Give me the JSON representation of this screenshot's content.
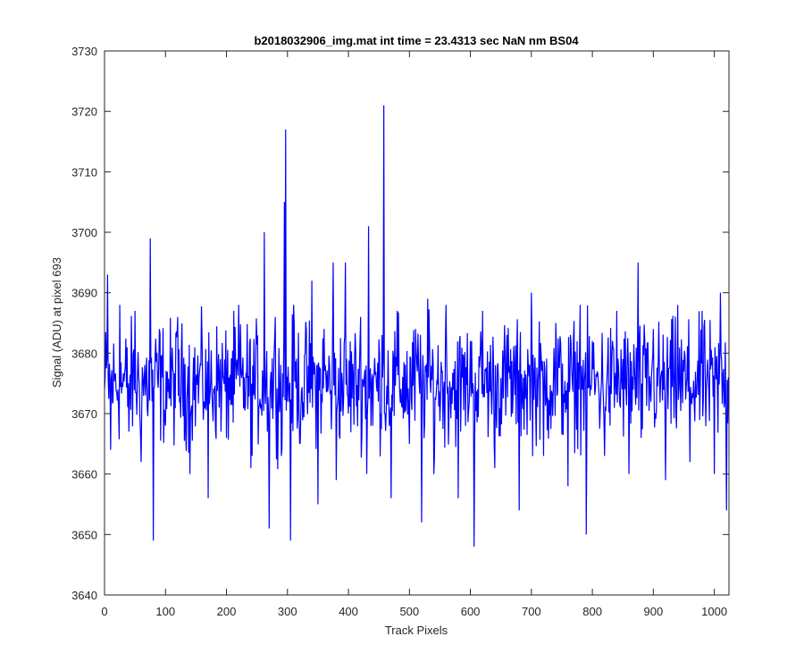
{
  "chart_data": {
    "type": "line",
    "title": "b2018032906_img.mat int time = 23.4313 sec  NaN nm BS04",
    "xlabel": "Track Pixels",
    "ylabel": "Signal (ADU) at pixel 693",
    "xlim": [
      0,
      1024
    ],
    "ylim": [
      3640,
      3730
    ],
    "xticks": [
      0,
      100,
      200,
      300,
      400,
      500,
      600,
      700,
      800,
      900,
      1000
    ],
    "yticks": [
      3640,
      3650,
      3660,
      3670,
      3680,
      3690,
      3700,
      3710,
      3720,
      3730
    ],
    "grid": false,
    "box": true,
    "line_color": "#0000ff",
    "series": [
      {
        "n_points": 1024,
        "baseline": 3675,
        "typical_range": [
          3660,
          3690
        ],
        "x": [
          0,
          5,
          10,
          25,
          40,
          50,
          60,
          75,
          80,
          90,
          100,
          120,
          140,
          160,
          170,
          190,
          200,
          220,
          240,
          260,
          262,
          270,
          280,
          290,
          295,
          297,
          300,
          305,
          310,
          320,
          340,
          350,
          360,
          375,
          380,
          395,
          400,
          420,
          430,
          433,
          440,
          455,
          458,
          460,
          470,
          480,
          500,
          510,
          520,
          530,
          540,
          560,
          580,
          600,
          606,
          620,
          640,
          660,
          680,
          700,
          720,
          740,
          760,
          780,
          790,
          800,
          820,
          840,
          860,
          875,
          880,
          900,
          920,
          940,
          960,
          980,
          1000,
          1010,
          1020,
          1023
        ],
        "values": [
          3674,
          3693,
          3664,
          3688,
          3667,
          3687,
          3662,
          3699,
          3649,
          3684,
          3668,
          3686,
          3660,
          3682,
          3656,
          3679,
          3666,
          3688,
          3661,
          3674,
          3700,
          3651,
          3686,
          3663,
          3705,
          3717,
          3672,
          3649,
          3688,
          3665,
          3692,
          3655,
          3684,
          3695,
          3659,
          3695,
          3670,
          3686,
          3660,
          3701,
          3668,
          3683,
          3721,
          3670,
          3656,
          3687,
          3665,
          3684,
          3652,
          3689,
          3660,
          3688,
          3656,
          3682,
          3648,
          3687,
          3661,
          3683,
          3654,
          3690,
          3663,
          3685,
          3658,
          3688,
          3650,
          3682,
          3663,
          3687,
          3660,
          3695,
          3666,
          3684,
          3659,
          3688,
          3662,
          3687,
          3660,
          3690,
          3654,
          3676
        ]
      }
    ]
  }
}
